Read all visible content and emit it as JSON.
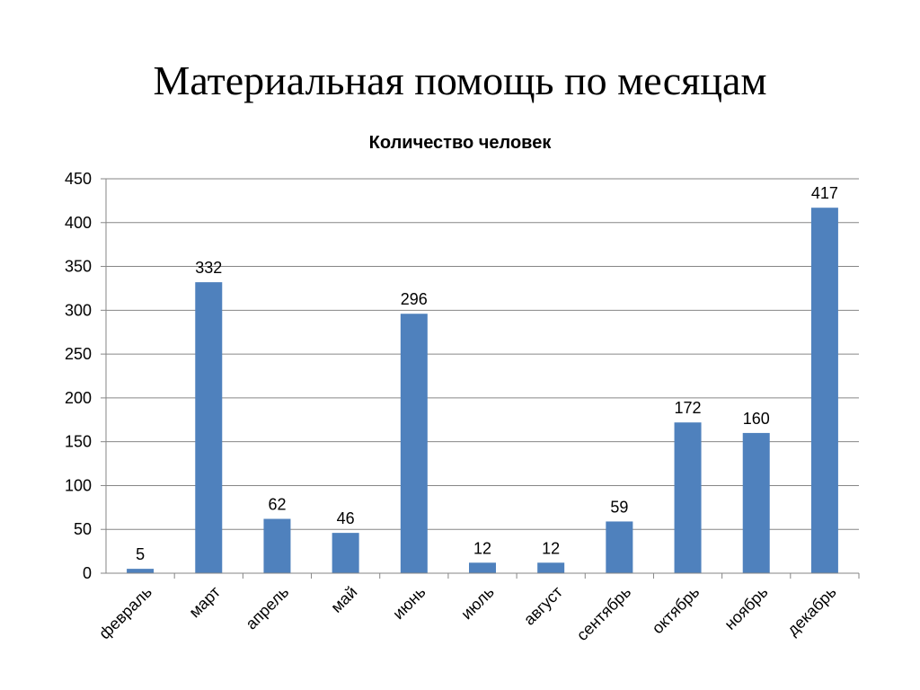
{
  "slide": {
    "title": "Материальная помощь по месяцам"
  },
  "chart_data": {
    "type": "bar",
    "title": "Количество человек",
    "categories": [
      "февраль",
      "март",
      "апрель",
      "май",
      "июнь",
      "июль",
      "август",
      "сентябрь",
      "октябрь",
      "ноябрь",
      "декабрь"
    ],
    "values": [
      5,
      332,
      62,
      46,
      296,
      12,
      12,
      59,
      172,
      160,
      417
    ],
    "ylim": [
      0,
      450
    ],
    "yticks": [
      0,
      50,
      100,
      150,
      200,
      250,
      300,
      350,
      400,
      450
    ],
    "data_labels": true,
    "grid": true,
    "legend": "none",
    "bar_color": "#4F81BD"
  }
}
